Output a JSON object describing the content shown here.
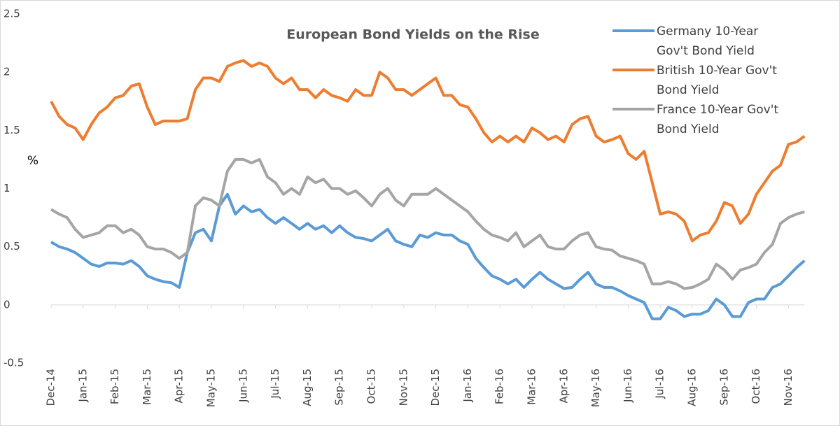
{
  "chart_data": {
    "type": "line",
    "title": "European Bond Yields on the Rise",
    "y_label": "%",
    "categories": [
      "Dec-14",
      null,
      null,
      null,
      "Jan-15",
      null,
      null,
      null,
      "Feb-15",
      null,
      null,
      null,
      "Mar-15",
      null,
      null,
      null,
      "Apr-15",
      null,
      null,
      null,
      "May-15",
      null,
      null,
      null,
      "Jun-15",
      null,
      null,
      null,
      "Jul-15",
      null,
      null,
      null,
      "Aug-15",
      null,
      null,
      null,
      "Sep-15",
      null,
      null,
      null,
      "Oct-15",
      null,
      null,
      null,
      "Nov-15",
      null,
      null,
      null,
      "Dec-15",
      null,
      null,
      null,
      "Jan-16",
      null,
      null,
      null,
      "Feb-16",
      null,
      null,
      null,
      "Mar-16",
      null,
      null,
      null,
      "Apr-16",
      null,
      null,
      null,
      "May-16",
      null,
      null,
      null,
      "Jun-16",
      null,
      null,
      null,
      "Jul-16",
      null,
      null,
      null,
      "Aug-16",
      null,
      null,
      null,
      "Sep-16",
      null,
      null,
      null,
      "Oct-16",
      null,
      null,
      null,
      "Nov-16",
      null,
      null
    ],
    "series": [
      {
        "name": "Germany 10-Year Gov't Bond Yield",
        "color": "#5b9bd5",
        "values": [
          0.54,
          0.5,
          0.48,
          0.45,
          0.4,
          0.35,
          0.33,
          0.36,
          0.36,
          0.35,
          0.38,
          0.33,
          0.25,
          0.22,
          0.2,
          0.19,
          0.15,
          0.45,
          0.62,
          0.65,
          0.55,
          0.85,
          0.95,
          0.78,
          0.85,
          0.8,
          0.82,
          0.75,
          0.7,
          0.75,
          0.7,
          0.65,
          0.7,
          0.65,
          0.68,
          0.62,
          0.68,
          0.62,
          0.58,
          0.57,
          0.55,
          0.6,
          0.65,
          0.55,
          0.52,
          0.5,
          0.6,
          0.58,
          0.62,
          0.6,
          0.6,
          0.55,
          0.52,
          0.4,
          0.32,
          0.25,
          0.22,
          0.18,
          0.22,
          0.15,
          0.22,
          0.28,
          0.22,
          0.18,
          0.14,
          0.15,
          0.22,
          0.28,
          0.18,
          0.15,
          0.15,
          0.12,
          0.08,
          0.05,
          0.02,
          -0.12,
          -0.12,
          -0.02,
          -0.05,
          -0.1,
          -0.08,
          -0.08,
          -0.05,
          0.05,
          0.0,
          -0.1,
          -0.1,
          0.02,
          0.05,
          0.05,
          0.15,
          0.18,
          0.25,
          0.32,
          0.38
        ]
      },
      {
        "name": "British 10-Year Gov't Bond Yield",
        "color": "#ed7d31",
        "values": [
          1.75,
          1.62,
          1.55,
          1.52,
          1.42,
          1.55,
          1.65,
          1.7,
          1.78,
          1.8,
          1.88,
          1.9,
          1.7,
          1.55,
          1.58,
          1.58,
          1.58,
          1.6,
          1.85,
          1.95,
          1.95,
          1.92,
          2.05,
          2.08,
          2.1,
          2.05,
          2.08,
          2.05,
          1.95,
          1.9,
          1.95,
          1.85,
          1.85,
          1.78,
          1.85,
          1.8,
          1.78,
          1.75,
          1.85,
          1.8,
          1.8,
          2.0,
          1.95,
          1.85,
          1.85,
          1.8,
          1.85,
          1.9,
          1.95,
          1.8,
          1.8,
          1.72,
          1.7,
          1.6,
          1.48,
          1.4,
          1.45,
          1.4,
          1.45,
          1.4,
          1.52,
          1.48,
          1.42,
          1.45,
          1.4,
          1.55,
          1.6,
          1.62,
          1.45,
          1.4,
          1.42,
          1.45,
          1.3,
          1.25,
          1.32,
          1.05,
          0.78,
          0.8,
          0.78,
          0.72,
          0.55,
          0.6,
          0.62,
          0.72,
          0.88,
          0.85,
          0.7,
          0.78,
          0.95,
          1.05,
          1.15,
          1.2,
          1.38,
          1.4,
          1.45
        ]
      },
      {
        "name": "France 10-Year Gov't Bond Yield",
        "color": "#a5a5a5",
        "values": [
          0.82,
          0.78,
          0.75,
          0.65,
          0.58,
          0.6,
          0.62,
          0.68,
          0.68,
          0.62,
          0.65,
          0.6,
          0.5,
          0.48,
          0.48,
          0.45,
          0.4,
          0.45,
          0.85,
          0.92,
          0.9,
          0.85,
          1.15,
          1.25,
          1.25,
          1.22,
          1.25,
          1.1,
          1.05,
          0.95,
          1.0,
          0.95,
          1.1,
          1.05,
          1.08,
          1.0,
          1.0,
          0.95,
          0.98,
          0.92,
          0.85,
          0.95,
          1.0,
          0.9,
          0.85,
          0.95,
          0.95,
          0.95,
          1.0,
          0.95,
          0.9,
          0.85,
          0.8,
          0.72,
          0.65,
          0.6,
          0.58,
          0.55,
          0.62,
          0.5,
          0.55,
          0.6,
          0.5,
          0.48,
          0.48,
          0.55,
          0.6,
          0.62,
          0.5,
          0.48,
          0.47,
          0.42,
          0.4,
          0.38,
          0.35,
          0.18,
          0.18,
          0.2,
          0.18,
          0.14,
          0.15,
          0.18,
          0.22,
          0.35,
          0.3,
          0.22,
          0.3,
          0.32,
          0.35,
          0.45,
          0.52,
          0.7,
          0.75,
          0.78,
          0.8
        ]
      }
    ],
    "ylim": [
      -0.5,
      2.5
    ],
    "yticks": [
      -0.5,
      0,
      0.5,
      1,
      1.5,
      2,
      2.5
    ],
    "grid": false,
    "legend": "top-right"
  }
}
